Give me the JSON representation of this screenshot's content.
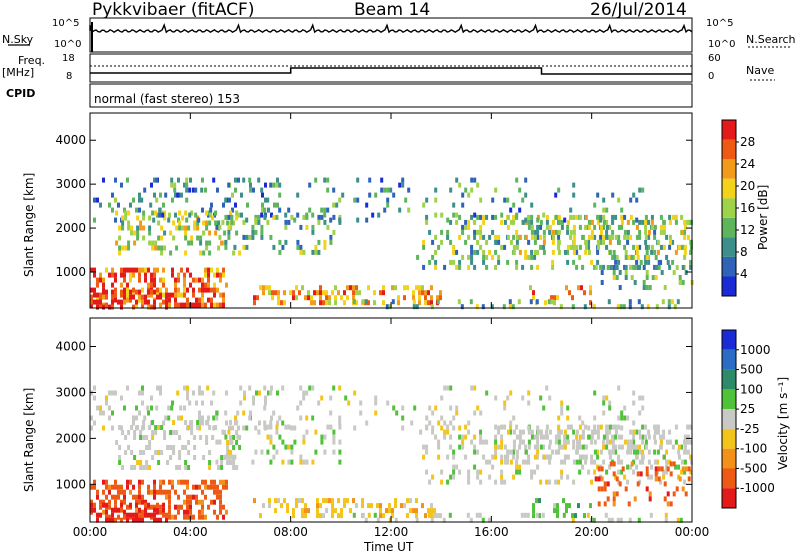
{
  "header": {
    "station": "Pykkvibaer (fitACF)",
    "beam": "Beam 14",
    "date": "26/Jul/2014"
  },
  "labels": {
    "nsky": "N.Sky",
    "nsky_ticks": [
      "10^5",
      "10^0"
    ],
    "nsearch": "N.Search",
    "freq": "Freq.",
    "freq_unit": "[MHz]",
    "freq_ticks": [
      "18",
      "8"
    ],
    "nave": "Nave",
    "nave_ticks": [
      "60",
      "0"
    ],
    "cpid": "CPID",
    "cpid_value": "normal (fast stereo) 153",
    "x_title": "Time UT"
  },
  "chart_data": [
    {
      "type": "heatmap",
      "name": "power",
      "ylabel": "Slant Range [km]",
      "yticks": [
        1000,
        2000,
        3000,
        4000
      ],
      "ylim": [
        180,
        4620
      ],
      "xticks": [
        "00:00",
        "04:00",
        "08:00",
        "12:00",
        "16:00",
        "20:00",
        "00:00"
      ],
      "xlim_hours": [
        0,
        24
      ],
      "colorbar": {
        "label": "Power [dB]",
        "ticks": [
          "4",
          "8",
          "12",
          "16",
          "20",
          "24",
          "28"
        ],
        "colors": [
          "#1a2bd6",
          "#2e63b8",
          "#3c8f8a",
          "#5fb55c",
          "#9fd24a",
          "#f3d21a",
          "#f29a1a",
          "#ee5a14",
          "#e41a1a"
        ]
      }
    },
    {
      "type": "heatmap",
      "name": "velocity",
      "ylabel": "Slant Range [km]",
      "yticks": [
        1000,
        2000,
        3000,
        4000
      ],
      "ylim": [
        180,
        4620
      ],
      "xticks": [
        "00:00",
        "04:00",
        "08:00",
        "12:00",
        "16:00",
        "20:00",
        "00:00"
      ],
      "xlim_hours": [
        0,
        24
      ],
      "colorbar": {
        "label": "Velocity [m s⁻¹]",
        "ticks": [
          "1000",
          "500",
          "100",
          "25",
          "-25",
          "-100",
          "-500",
          "-1000"
        ],
        "colors": [
          "#1a2bd6",
          "#2b6cc4",
          "#2f8a6a",
          "#4fc23a",
          "#c8c8c4",
          "#f3c41a",
          "#f3921a",
          "#ee5a14",
          "#e41a1a"
        ]
      }
    }
  ]
}
